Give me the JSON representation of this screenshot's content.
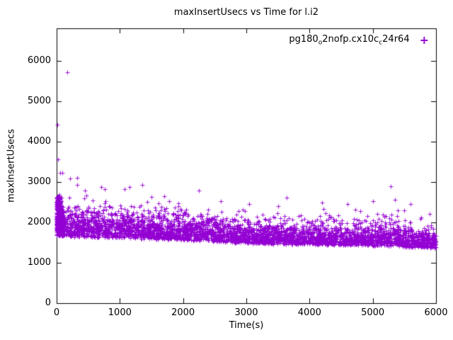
{
  "chart_data": {
    "type": "scatter",
    "title": "maxInsertUsecs vs Time for l.i2",
    "xlabel": "Time(s)",
    "ylabel": "maxInsertUsecs",
    "xlim": [
      0,
      6000
    ],
    "ylim": [
      0,
      6800
    ],
    "xticks": [
      0,
      1000,
      2000,
      3000,
      4000,
      5000,
      6000
    ],
    "yticks": [
      0,
      1000,
      2000,
      3000,
      4000,
      5000,
      6000
    ],
    "grid": false,
    "legend": {
      "label": "pg180_o2nofp.cx10c_c24r64",
      "marker": "plus",
      "position": "top-right-inside"
    },
    "series": [
      {
        "name": "pg180_o2nofp.cx10c_c24r64",
        "color": "#9400d3",
        "marker": "plus",
        "seed": 1234,
        "n_points": 4200,
        "band": {
          "x": [
            0,
            100,
            300,
            600,
            1000,
            1500,
            2000,
            2500,
            3000,
            3500,
            4000,
            4500,
            5000,
            5300,
            5600,
            6000
          ],
          "lo": [
            1700,
            1680,
            1660,
            1640,
            1630,
            1610,
            1580,
            1540,
            1500,
            1480,
            1470,
            1450,
            1440,
            1430,
            1400,
            1380
          ],
          "hi": [
            2550,
            2450,
            2400,
            2380,
            2350,
            2320,
            2280,
            2150,
            2050,
            2020,
            2000,
            1980,
            2050,
            2200,
            1980,
            1900
          ]
        },
        "left_stripe": {
          "x_max": 60,
          "y_min": 1800,
          "y_max": 2650,
          "n": 260
        },
        "outliers": [
          [
            8,
            4420
          ],
          [
            18,
            3560
          ],
          [
            55,
            3230
          ],
          [
            95,
            3230
          ],
          [
            170,
            5720
          ],
          [
            210,
            3080
          ],
          [
            320,
            3100
          ],
          [
            330,
            2920
          ],
          [
            450,
            2780
          ],
          [
            700,
            2870
          ],
          [
            760,
            2830
          ],
          [
            1080,
            2820
          ],
          [
            1150,
            2870
          ],
          [
            1350,
            2920
          ],
          [
            1700,
            2650
          ],
          [
            2250,
            2780
          ],
          [
            2600,
            2520
          ],
          [
            3050,
            2450
          ],
          [
            3500,
            2400
          ],
          [
            4200,
            2480
          ],
          [
            4600,
            2450
          ],
          [
            5000,
            2520
          ],
          [
            5280,
            2900
          ],
          [
            5350,
            2560
          ],
          [
            5600,
            2450
          ],
          [
            5900,
            2200
          ]
        ]
      }
    ]
  }
}
